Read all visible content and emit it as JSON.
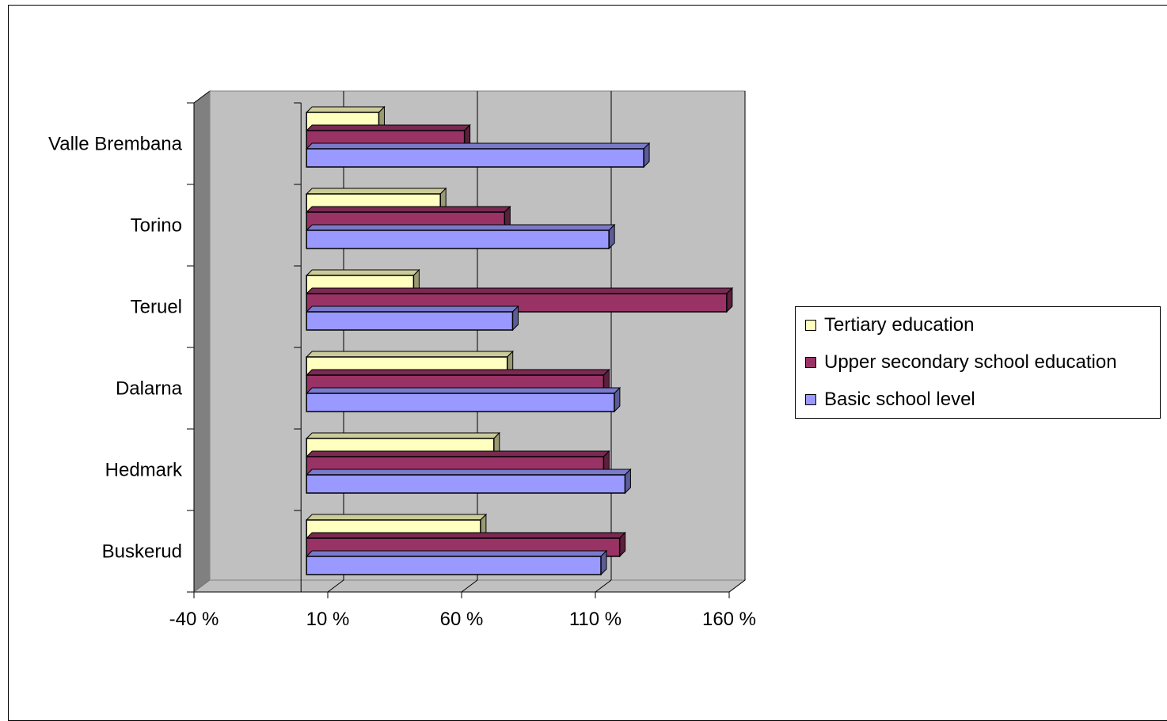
{
  "chart_data": {
    "type": "bar",
    "orientation": "horizontal",
    "style": "3d-clustered",
    "title": "",
    "xlabel": "",
    "ylabel": "",
    "categories": [
      "Buskerud",
      "Hedmark",
      "Dalarna",
      "Teruel",
      "Torino",
      "Valle Brembana"
    ],
    "series": [
      {
        "name": "Tertiary education",
        "color": "#ffffc0",
        "values": [
          65,
          70,
          75,
          40,
          50,
          27
        ]
      },
      {
        "name": "Upper secondary school education",
        "color": "#993366",
        "values": [
          117,
          111,
          111,
          157,
          74,
          59
        ]
      },
      {
        "name": "Basic school level",
        "color": "#9999ff",
        "values": [
          110,
          119,
          115,
          77,
          113,
          126
        ]
      }
    ],
    "xlim": [
      -40,
      160
    ],
    "xticks": [
      -40,
      10,
      60,
      110,
      160
    ],
    "tick_labels": [
      "-40 %",
      "10 %",
      "60 %",
      "110 %",
      "160 %"
    ],
    "baseline": 0,
    "grid": true,
    "legend_position": "right",
    "colors": {
      "wall": "#c0c0c0",
      "side_wall": "#808080",
      "floor": "#c0c0c0",
      "gridline": "#000000"
    }
  }
}
